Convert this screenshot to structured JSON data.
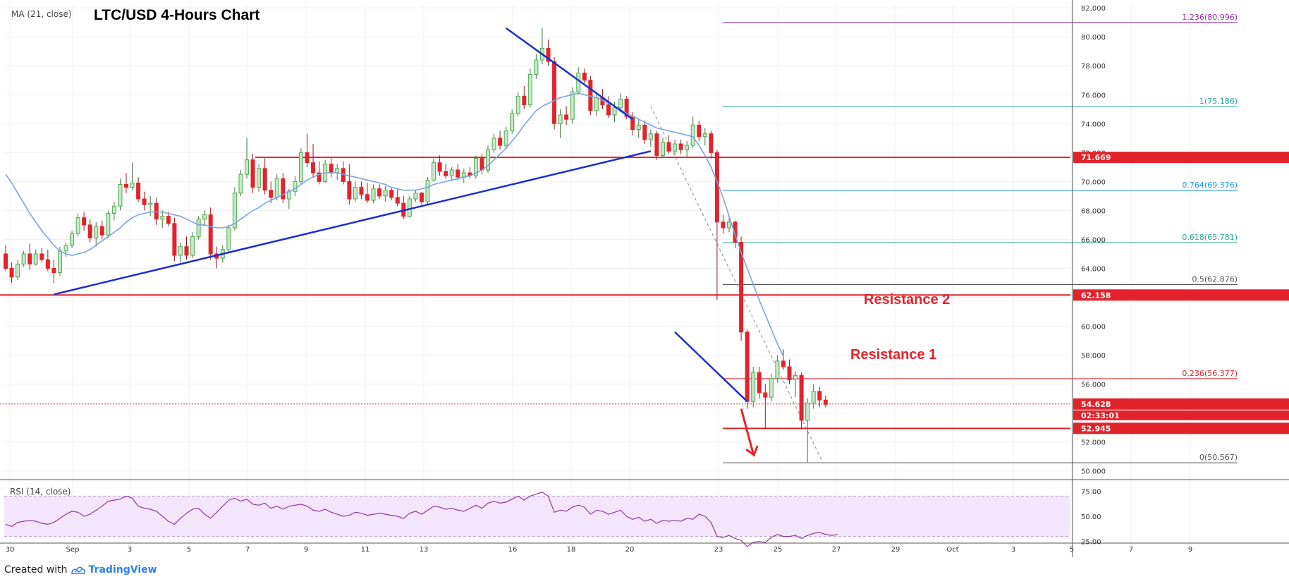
{
  "header": {
    "title": "LTC/USD 4-Hours Chart",
    "ma_legend": "MA (21, close)",
    "rsi_legend": "RSI (14, close)"
  },
  "footer": {
    "created_with": "Created with",
    "brand": "TradingView"
  },
  "colors": {
    "up": "#4caf50",
    "down": "#e3232b",
    "ma": "#7aa4e0",
    "trendline": "#1b2fd0",
    "resistance": "#e3232b",
    "rsi_line": "#8e3aa8",
    "rsi_band": "#f3e5fb",
    "fib_purple": "#9c27b0",
    "fib_teal": "#26a69a",
    "fib_blue": "#2196f3",
    "fib_gray": "#555555"
  },
  "chart_data": {
    "type": "candlestick",
    "title": "LTC/USD 4-Hours Chart",
    "price_axis": {
      "ticks": [
        "82.000",
        "80.000",
        "78.000",
        "76.000",
        "74.000",
        "72.000",
        "70.000",
        "68.000",
        "66.000",
        "64.000",
        "62.000",
        "60.000",
        "58.000",
        "56.000",
        "54.000",
        "52.000",
        "50.000"
      ],
      "range": [
        49.5,
        82.3
      ]
    },
    "time_axis": {
      "ticks": [
        "30",
        "Sep",
        "3",
        "5",
        "7",
        "9",
        "11",
        "13",
        "16",
        "18",
        "20",
        "23",
        "25",
        "27",
        "29",
        "Oct",
        "3",
        "5",
        "7",
        "9"
      ]
    },
    "rsi_axis": {
      "ticks": [
        "75.00",
        "50.00",
        "25.00"
      ],
      "range": [
        15,
        85
      ],
      "band": [
        30,
        70
      ]
    },
    "price_tags": [
      {
        "value": 71.669,
        "label": "71.669"
      },
      {
        "value": 62.158,
        "label": "62.158"
      },
      {
        "value": 54.628,
        "label": "54.628"
      },
      {
        "value": 52.945,
        "label": "52.945"
      }
    ],
    "countdown": "02:33:01",
    "fib_levels": [
      {
        "ratio": "1.236",
        "price": 80.996,
        "label": "1.236(80.996)",
        "color": "#9c27b0"
      },
      {
        "ratio": "1",
        "price": 75.186,
        "label": "1(75.186)",
        "color": "#26a69a"
      },
      {
        "ratio": "0.764",
        "price": 69.376,
        "label": "0.764(69.376)",
        "color": "#2196f3"
      },
      {
        "ratio": "0.618",
        "price": 65.781,
        "label": "0.618(65.781)",
        "color": "#26a69a"
      },
      {
        "ratio": "0.5",
        "price": 62.876,
        "label": "0.5(62.876)",
        "color": "#555555"
      },
      {
        "ratio": "0.236",
        "price": 56.377,
        "label": "0.236(56.377)",
        "color": "#e3232b"
      },
      {
        "ratio": "0",
        "price": 50.567,
        "label": "0(50.567)",
        "color": "#555555"
      }
    ],
    "resistance_lines": [
      71.669,
      62.158,
      52.945
    ],
    "annotations": [
      {
        "text": "Resistance 2"
      },
      {
        "text": "Resistance 1"
      }
    ],
    "candles": [
      {
        "o": 65.0,
        "h": 65.6,
        "l": 63.8,
        "c": 64.0
      },
      {
        "o": 64.0,
        "h": 64.4,
        "l": 63.0,
        "c": 63.4
      },
      {
        "o": 63.4,
        "h": 64.6,
        "l": 63.2,
        "c": 64.3
      },
      {
        "o": 64.3,
        "h": 65.2,
        "l": 64.1,
        "c": 65.0
      },
      {
        "o": 65.0,
        "h": 65.7,
        "l": 63.9,
        "c": 64.3
      },
      {
        "o": 64.3,
        "h": 65.3,
        "l": 64.2,
        "c": 65.0
      },
      {
        "o": 65.0,
        "h": 65.4,
        "l": 64.4,
        "c": 64.6
      },
      {
        "o": 64.6,
        "h": 65.3,
        "l": 63.8,
        "c": 64.0
      },
      {
        "o": 64.0,
        "h": 64.6,
        "l": 63.0,
        "c": 63.7
      },
      {
        "o": 63.7,
        "h": 65.5,
        "l": 63.5,
        "c": 65.2
      },
      {
        "o": 65.2,
        "h": 65.8,
        "l": 64.8,
        "c": 65.6
      },
      {
        "o": 65.6,
        "h": 66.6,
        "l": 65.4,
        "c": 66.4
      },
      {
        "o": 66.4,
        "h": 67.8,
        "l": 66.2,
        "c": 67.5
      },
      {
        "o": 67.5,
        "h": 67.9,
        "l": 66.6,
        "c": 67.0
      },
      {
        "o": 67.0,
        "h": 67.4,
        "l": 65.8,
        "c": 66.1
      },
      {
        "o": 66.1,
        "h": 67.2,
        "l": 65.5,
        "c": 66.9
      },
      {
        "o": 66.9,
        "h": 67.3,
        "l": 66.0,
        "c": 66.3
      },
      {
        "o": 66.3,
        "h": 68.0,
        "l": 66.1,
        "c": 67.8
      },
      {
        "o": 67.8,
        "h": 68.6,
        "l": 67.3,
        "c": 68.3
      },
      {
        "o": 68.3,
        "h": 70.2,
        "l": 68.0,
        "c": 69.8
      },
      {
        "o": 69.8,
        "h": 70.6,
        "l": 69.2,
        "c": 69.6
      },
      {
        "o": 69.6,
        "h": 71.3,
        "l": 69.4,
        "c": 69.9
      },
      {
        "o": 69.9,
        "h": 70.3,
        "l": 68.6,
        "c": 68.8
      },
      {
        "o": 68.8,
        "h": 69.3,
        "l": 68.0,
        "c": 68.4
      },
      {
        "o": 68.4,
        "h": 69.0,
        "l": 67.6,
        "c": 68.5
      },
      {
        "o": 68.5,
        "h": 68.9,
        "l": 67.0,
        "c": 67.4
      },
      {
        "o": 67.4,
        "h": 68.0,
        "l": 66.8,
        "c": 67.6
      },
      {
        "o": 67.6,
        "h": 67.9,
        "l": 66.9,
        "c": 67.1
      },
      {
        "o": 67.1,
        "h": 67.5,
        "l": 64.5,
        "c": 64.9
      },
      {
        "o": 64.9,
        "h": 65.8,
        "l": 64.4,
        "c": 65.5
      },
      {
        "o": 65.5,
        "h": 66.2,
        "l": 64.6,
        "c": 64.9
      },
      {
        "o": 64.9,
        "h": 66.5,
        "l": 64.7,
        "c": 66.2
      },
      {
        "o": 66.2,
        "h": 67.6,
        "l": 66.0,
        "c": 67.4
      },
      {
        "o": 67.4,
        "h": 68.0,
        "l": 66.9,
        "c": 67.7
      },
      {
        "o": 67.7,
        "h": 68.2,
        "l": 64.6,
        "c": 65.0
      },
      {
        "o": 65.0,
        "h": 65.5,
        "l": 64.0,
        "c": 64.7
      },
      {
        "o": 64.7,
        "h": 65.6,
        "l": 64.4,
        "c": 65.3
      },
      {
        "o": 65.3,
        "h": 67.0,
        "l": 65.1,
        "c": 66.8
      },
      {
        "o": 66.8,
        "h": 69.6,
        "l": 66.6,
        "c": 69.2
      },
      {
        "o": 69.2,
        "h": 70.8,
        "l": 69.0,
        "c": 70.5
      },
      {
        "o": 70.5,
        "h": 73.0,
        "l": 70.2,
        "c": 71.5
      },
      {
        "o": 71.5,
        "h": 71.9,
        "l": 69.2,
        "c": 69.6
      },
      {
        "o": 69.6,
        "h": 71.2,
        "l": 69.3,
        "c": 70.9
      },
      {
        "o": 70.9,
        "h": 71.6,
        "l": 69.1,
        "c": 69.4
      },
      {
        "o": 69.4,
        "h": 70.0,
        "l": 68.5,
        "c": 68.9
      },
      {
        "o": 68.9,
        "h": 70.5,
        "l": 68.7,
        "c": 70.2
      },
      {
        "o": 70.2,
        "h": 70.6,
        "l": 68.5,
        "c": 68.8
      },
      {
        "o": 68.8,
        "h": 69.5,
        "l": 68.1,
        "c": 69.3
      },
      {
        "o": 69.3,
        "h": 70.4,
        "l": 69.0,
        "c": 70.0
      },
      {
        "o": 70.0,
        "h": 72.3,
        "l": 69.8,
        "c": 72.0
      },
      {
        "o": 72.0,
        "h": 73.3,
        "l": 71.0,
        "c": 71.3
      },
      {
        "o": 71.3,
        "h": 72.6,
        "l": 70.3,
        "c": 70.6
      },
      {
        "o": 70.6,
        "h": 71.4,
        "l": 69.8,
        "c": 70.0
      },
      {
        "o": 70.0,
        "h": 71.5,
        "l": 69.9,
        "c": 71.2
      },
      {
        "o": 71.2,
        "h": 71.6,
        "l": 70.3,
        "c": 70.6
      },
      {
        "o": 70.6,
        "h": 71.2,
        "l": 70.1,
        "c": 70.9
      },
      {
        "o": 70.9,
        "h": 71.4,
        "l": 69.8,
        "c": 70.0
      },
      {
        "o": 70.0,
        "h": 71.2,
        "l": 68.4,
        "c": 68.8
      },
      {
        "o": 68.8,
        "h": 70.0,
        "l": 68.6,
        "c": 69.6
      },
      {
        "o": 69.6,
        "h": 70.0,
        "l": 68.8,
        "c": 69.1
      },
      {
        "o": 69.1,
        "h": 69.9,
        "l": 68.5,
        "c": 68.7
      },
      {
        "o": 68.7,
        "h": 69.8,
        "l": 68.5,
        "c": 69.5
      },
      {
        "o": 69.5,
        "h": 69.8,
        "l": 68.8,
        "c": 69.0
      },
      {
        "o": 69.0,
        "h": 69.7,
        "l": 68.6,
        "c": 69.4
      },
      {
        "o": 69.4,
        "h": 69.6,
        "l": 68.7,
        "c": 68.9
      },
      {
        "o": 68.9,
        "h": 69.5,
        "l": 68.3,
        "c": 68.5
      },
      {
        "o": 68.5,
        "h": 69.0,
        "l": 67.4,
        "c": 67.6
      },
      {
        "o": 67.6,
        "h": 69.0,
        "l": 67.5,
        "c": 68.8
      },
      {
        "o": 68.8,
        "h": 69.4,
        "l": 68.6,
        "c": 69.2
      },
      {
        "o": 69.2,
        "h": 69.3,
        "l": 68.4,
        "c": 68.6
      },
      {
        "o": 68.6,
        "h": 70.3,
        "l": 68.4,
        "c": 70.1
      },
      {
        "o": 70.1,
        "h": 71.6,
        "l": 70.0,
        "c": 71.3
      },
      {
        "o": 71.3,
        "h": 71.8,
        "l": 70.4,
        "c": 70.7
      },
      {
        "o": 70.7,
        "h": 71.2,
        "l": 70.2,
        "c": 70.4
      },
      {
        "o": 70.4,
        "h": 71.0,
        "l": 70.1,
        "c": 70.8
      },
      {
        "o": 70.8,
        "h": 71.2,
        "l": 70.1,
        "c": 70.3
      },
      {
        "o": 70.3,
        "h": 70.9,
        "l": 69.9,
        "c": 70.6
      },
      {
        "o": 70.6,
        "h": 71.0,
        "l": 70.2,
        "c": 70.4
      },
      {
        "o": 70.4,
        "h": 71.8,
        "l": 70.2,
        "c": 71.6
      },
      {
        "o": 71.6,
        "h": 71.9,
        "l": 70.5,
        "c": 70.8
      },
      {
        "o": 70.8,
        "h": 72.5,
        "l": 70.6,
        "c": 72.2
      },
      {
        "o": 72.2,
        "h": 73.3,
        "l": 72.0,
        "c": 73.0
      },
      {
        "o": 73.0,
        "h": 73.5,
        "l": 72.2,
        "c": 72.5
      },
      {
        "o": 72.5,
        "h": 73.8,
        "l": 72.3,
        "c": 73.5
      },
      {
        "o": 73.5,
        "h": 75.0,
        "l": 73.3,
        "c": 74.7
      },
      {
        "o": 74.7,
        "h": 76.2,
        "l": 74.5,
        "c": 75.9
      },
      {
        "o": 75.9,
        "h": 76.6,
        "l": 75.0,
        "c": 75.3
      },
      {
        "o": 75.3,
        "h": 77.8,
        "l": 75.1,
        "c": 77.4
      },
      {
        "o": 77.4,
        "h": 78.8,
        "l": 77.1,
        "c": 78.4
      },
      {
        "o": 78.4,
        "h": 80.6,
        "l": 78.1,
        "c": 79.2
      },
      {
        "o": 79.2,
        "h": 79.8,
        "l": 78.0,
        "c": 78.3
      },
      {
        "o": 78.3,
        "h": 78.6,
        "l": 73.6,
        "c": 74.0
      },
      {
        "o": 74.0,
        "h": 75.0,
        "l": 73.0,
        "c": 74.6
      },
      {
        "o": 74.6,
        "h": 75.2,
        "l": 73.9,
        "c": 74.3
      },
      {
        "o": 74.3,
        "h": 76.5,
        "l": 74.0,
        "c": 76.2
      },
      {
        "o": 76.2,
        "h": 77.9,
        "l": 76.0,
        "c": 77.5
      },
      {
        "o": 77.5,
        "h": 77.8,
        "l": 76.8,
        "c": 77.0
      },
      {
        "o": 77.0,
        "h": 77.3,
        "l": 74.6,
        "c": 74.9
      },
      {
        "o": 74.9,
        "h": 76.2,
        "l": 74.5,
        "c": 75.8
      },
      {
        "o": 75.8,
        "h": 76.4,
        "l": 75.0,
        "c": 75.3
      },
      {
        "o": 75.3,
        "h": 75.9,
        "l": 74.4,
        "c": 74.6
      },
      {
        "o": 74.6,
        "h": 75.5,
        "l": 74.1,
        "c": 75.1
      },
      {
        "o": 75.1,
        "h": 76.1,
        "l": 74.8,
        "c": 75.7
      },
      {
        "o": 75.7,
        "h": 75.9,
        "l": 74.3,
        "c": 74.5
      },
      {
        "o": 74.5,
        "h": 74.8,
        "l": 73.2,
        "c": 73.6
      },
      {
        "o": 73.6,
        "h": 74.3,
        "l": 73.0,
        "c": 73.9
      },
      {
        "o": 73.9,
        "h": 74.2,
        "l": 72.6,
        "c": 72.9
      },
      {
        "o": 72.9,
        "h": 73.6,
        "l": 72.4,
        "c": 73.3
      },
      {
        "o": 73.3,
        "h": 73.5,
        "l": 71.5,
        "c": 71.8
      },
      {
        "o": 71.8,
        "h": 73.0,
        "l": 71.6,
        "c": 72.7
      },
      {
        "o": 72.7,
        "h": 73.2,
        "l": 71.9,
        "c": 72.1
      },
      {
        "o": 72.1,
        "h": 72.9,
        "l": 71.8,
        "c": 72.6
      },
      {
        "o": 72.6,
        "h": 72.9,
        "l": 71.9,
        "c": 72.2
      },
      {
        "o": 72.2,
        "h": 72.8,
        "l": 71.7,
        "c": 72.5
      },
      {
        "o": 72.5,
        "h": 74.5,
        "l": 72.3,
        "c": 73.9
      },
      {
        "o": 73.9,
        "h": 74.2,
        "l": 72.8,
        "c": 73.1
      },
      {
        "o": 73.1,
        "h": 73.7,
        "l": 72.5,
        "c": 73.3
      },
      {
        "o": 73.3,
        "h": 73.5,
        "l": 71.6,
        "c": 72.0
      },
      {
        "o": 72.0,
        "h": 72.2,
        "l": 61.8,
        "c": 67.2
      },
      {
        "o": 67.2,
        "h": 67.7,
        "l": 66.4,
        "c": 66.8
      },
      {
        "o": 66.8,
        "h": 67.5,
        "l": 66.5,
        "c": 67.2
      },
      {
        "o": 67.2,
        "h": 67.3,
        "l": 65.4,
        "c": 65.8
      },
      {
        "o": 65.8,
        "h": 66.2,
        "l": 59.0,
        "c": 59.6
      },
      {
        "o": 59.6,
        "h": 59.8,
        "l": 54.3,
        "c": 54.8
      },
      {
        "o": 54.8,
        "h": 57.2,
        "l": 54.4,
        "c": 56.8
      },
      {
        "o": 56.8,
        "h": 57.2,
        "l": 55.0,
        "c": 55.4
      },
      {
        "o": 55.4,
        "h": 56.0,
        "l": 52.9,
        "c": 55.1
      },
      {
        "o": 55.1,
        "h": 56.7,
        "l": 54.8,
        "c": 56.4
      },
      {
        "o": 56.4,
        "h": 58.0,
        "l": 56.1,
        "c": 57.6
      },
      {
        "o": 57.6,
        "h": 58.4,
        "l": 57.0,
        "c": 57.2
      },
      {
        "o": 57.2,
        "h": 57.7,
        "l": 56.0,
        "c": 56.3
      },
      {
        "o": 56.3,
        "h": 56.9,
        "l": 55.1,
        "c": 56.6
      },
      {
        "o": 56.6,
        "h": 56.8,
        "l": 52.9,
        "c": 53.5
      },
      {
        "o": 53.5,
        "h": 55.0,
        "l": 50.6,
        "c": 54.7
      },
      {
        "o": 54.7,
        "h": 56.0,
        "l": 54.3,
        "c": 55.5
      },
      {
        "o": 55.5,
        "h": 55.8,
        "l": 54.4,
        "c": 54.9
      },
      {
        "o": 54.9,
        "h": 55.2,
        "l": 54.4,
        "c": 54.6
      }
    ],
    "rsi": [
      42,
      40,
      44,
      45,
      46,
      45,
      43,
      42,
      44,
      48,
      52,
      55,
      54,
      50,
      52,
      56,
      60,
      65,
      66,
      67,
      70,
      68,
      60,
      58,
      57,
      55,
      50,
      45,
      42,
      48,
      53,
      57,
      58,
      52,
      48,
      54,
      60,
      66,
      68,
      65,
      67,
      62,
      61,
      63,
      58,
      60,
      57,
      60,
      61,
      62,
      60,
      56,
      55,
      57,
      54,
      52,
      50,
      51,
      54,
      53,
      51,
      52,
      53,
      52,
      51,
      50,
      48,
      53,
      55,
      52,
      56,
      60,
      59,
      57,
      58,
      56,
      55,
      58,
      61,
      58,
      63,
      65,
      63,
      64,
      67,
      70,
      66,
      70,
      72,
      74,
      70,
      54,
      56,
      55,
      59,
      61,
      59,
      52,
      56,
      55,
      52,
      54,
      56,
      50,
      47,
      49,
      45,
      47,
      43,
      46,
      45,
      46,
      45,
      48,
      47,
      52,
      50,
      44,
      30,
      29,
      31,
      28,
      26,
      20,
      24,
      25,
      24,
      29,
      32,
      30,
      30,
      31,
      28,
      31,
      33,
      34,
      32,
      31,
      32
    ],
    "ma": [
      70.5,
      69.9,
      69.2,
      68.5,
      67.8,
      67.2,
      66.6,
      66.1,
      65.6,
      65.2,
      65.0,
      64.9,
      65.0,
      65.1,
      65.3,
      65.6,
      65.9,
      66.2,
      66.5,
      66.8,
      67.2,
      67.5,
      67.7,
      67.8,
      67.9,
      67.9,
      67.9,
      67.8,
      67.7,
      67.6,
      67.4,
      67.2,
      67.0,
      67.0,
      66.9,
      66.8,
      66.8,
      66.9,
      67.1,
      67.4,
      67.7,
      68.0,
      68.2,
      68.5,
      68.7,
      68.9,
      69.1,
      69.3,
      69.5,
      69.8,
      70.1,
      70.3,
      70.5,
      70.6,
      70.6,
      70.6,
      70.5,
      70.4,
      70.3,
      70.2,
      70.1,
      70.0,
      69.9,
      69.8,
      69.6,
      69.5,
      69.4,
      69.4,
      69.4,
      69.5,
      69.6,
      69.8,
      69.9,
      70.0,
      70.1,
      70.2,
      70.3,
      70.4,
      70.6,
      70.8,
      71.1,
      71.5,
      71.9,
      72.3,
      72.8,
      73.3,
      73.9,
      74.4,
      74.9,
      75.2,
      75.4,
      75.6,
      75.8,
      75.9,
      76.0,
      76.1,
      76.0,
      75.9,
      75.8,
      75.6,
      75.4,
      75.2,
      75.0,
      74.7,
      74.5,
      74.3,
      74.1,
      73.9,
      73.7,
      73.6,
      73.5,
      73.4,
      73.3,
      73.2,
      73.1,
      72.5,
      71.8,
      71.0,
      70.0,
      68.9,
      67.6,
      66.3,
      65.1,
      64.0,
      62.9,
      61.8,
      60.8,
      59.8,
      58.8,
      57.9
    ]
  }
}
